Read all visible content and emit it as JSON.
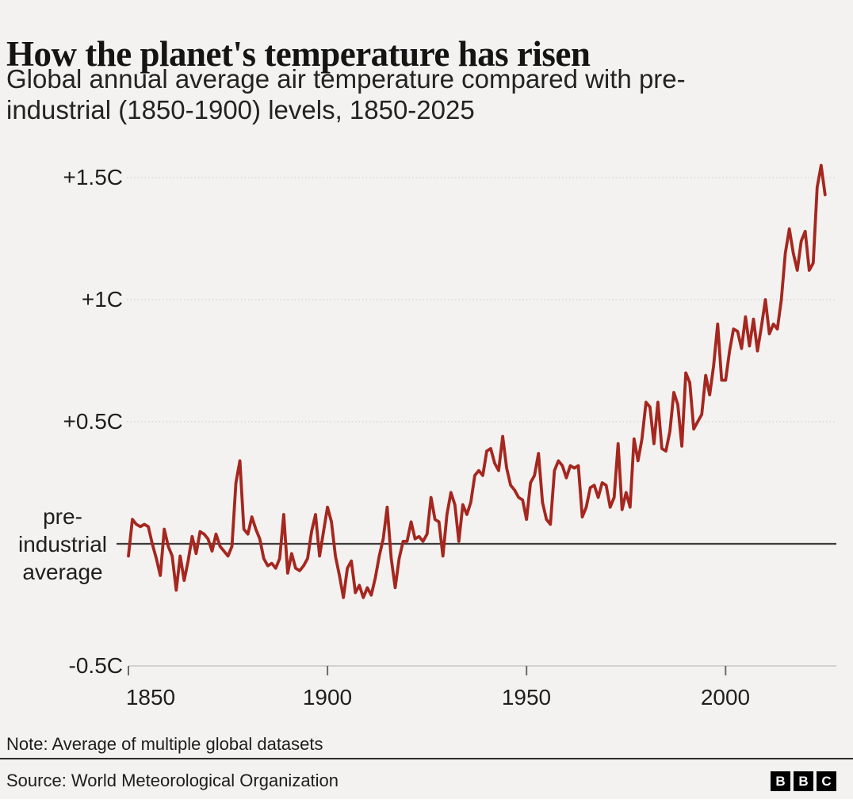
{
  "header": {
    "title": "How the planet's temperature has risen",
    "subtitle_lines": [
      "Global annual average air temperature compared with pre-",
      "industrial (1850-1900) levels, 1850-2025"
    ]
  },
  "chart_data": {
    "type": "line",
    "title": "How the planet's temperature has risen",
    "subtitle": "Global annual average air temperature compared with pre-industrial (1850-1900) levels, 1850-2025",
    "series_name": "Global annual average air temperature anomaly (C vs 1850-1900)",
    "x_start": 1850,
    "x_end": 2025,
    "values": [
      -0.05,
      0.1,
      0.08,
      0.07,
      0.08,
      0.07,
      0.0,
      -0.06,
      -0.13,
      0.06,
      -0.01,
      -0.05,
      -0.19,
      -0.05,
      -0.15,
      -0.07,
      0.03,
      -0.04,
      0.05,
      0.04,
      0.02,
      -0.03,
      0.04,
      -0.01,
      -0.03,
      -0.05,
      -0.01,
      0.25,
      0.34,
      0.06,
      0.04,
      0.11,
      0.06,
      0.02,
      -0.06,
      -0.09,
      -0.08,
      -0.1,
      -0.06,
      0.12,
      -0.12,
      -0.04,
      -0.1,
      -0.11,
      -0.09,
      -0.06,
      0.05,
      0.12,
      -0.05,
      0.05,
      0.15,
      0.09,
      -0.05,
      -0.13,
      -0.22,
      -0.1,
      -0.07,
      -0.2,
      -0.17,
      -0.22,
      -0.18,
      -0.21,
      -0.14,
      -0.05,
      0.02,
      0.15,
      -0.06,
      -0.18,
      -0.06,
      0.01,
      0.01,
      0.09,
      0.02,
      0.03,
      0.01,
      0.04,
      0.19,
      0.1,
      0.09,
      -0.05,
      0.12,
      0.21,
      0.16,
      0.01,
      0.16,
      0.12,
      0.17,
      0.28,
      0.3,
      0.28,
      0.38,
      0.39,
      0.33,
      0.3,
      0.44,
      0.31,
      0.24,
      0.22,
      0.19,
      0.18,
      0.1,
      0.25,
      0.28,
      0.37,
      0.17,
      0.1,
      0.08,
      0.3,
      0.34,
      0.32,
      0.27,
      0.32,
      0.31,
      0.32,
      0.11,
      0.15,
      0.23,
      0.24,
      0.19,
      0.25,
      0.24,
      0.15,
      0.19,
      0.41,
      0.14,
      0.21,
      0.15,
      0.43,
      0.34,
      0.43,
      0.58,
      0.56,
      0.41,
      0.58,
      0.39,
      0.38,
      0.46,
      0.62,
      0.57,
      0.4,
      0.7,
      0.66,
      0.47,
      0.5,
      0.53,
      0.69,
      0.61,
      0.73,
      0.9,
      0.67,
      0.67,
      0.79,
      0.88,
      0.87,
      0.8,
      0.93,
      0.81,
      0.92,
      0.79,
      0.89,
      1.0,
      0.86,
      0.9,
      0.88,
      1.0,
      1.19,
      1.29,
      1.19,
      1.12,
      1.24,
      1.28,
      1.12,
      1.15,
      1.46,
      1.55,
      1.43
    ],
    "yticks": [
      {
        "label": "+1.5C",
        "value": 1.5
      },
      {
        "label": "+1C",
        "value": 1.0
      },
      {
        "label": "+0.5C",
        "value": 0.5
      },
      {
        "label": "-0.5C",
        "value": -0.5
      }
    ],
    "baseline": {
      "value": 0,
      "label_lines": [
        "pre-",
        "industrial",
        "average"
      ]
    },
    "xticks": [
      1850,
      1900,
      1950,
      2000
    ],
    "xlabel": "",
    "ylabel": "",
    "ylim": [
      -0.5,
      1.6
    ],
    "xlim": [
      1850,
      2026
    ],
    "grid": "horizontal-dotted",
    "legend_position": "none",
    "line_color": "#a5271f",
    "zero_line_color": "#3c3c3c",
    "grid_color": "#d2d2d0",
    "axis_color": "#c6c6c4"
  },
  "footer": {
    "note": "Note: Average of multiple global datasets",
    "source": "Source: World Meteorological Organization",
    "logo_letters": [
      "B",
      "B",
      "C"
    ]
  }
}
